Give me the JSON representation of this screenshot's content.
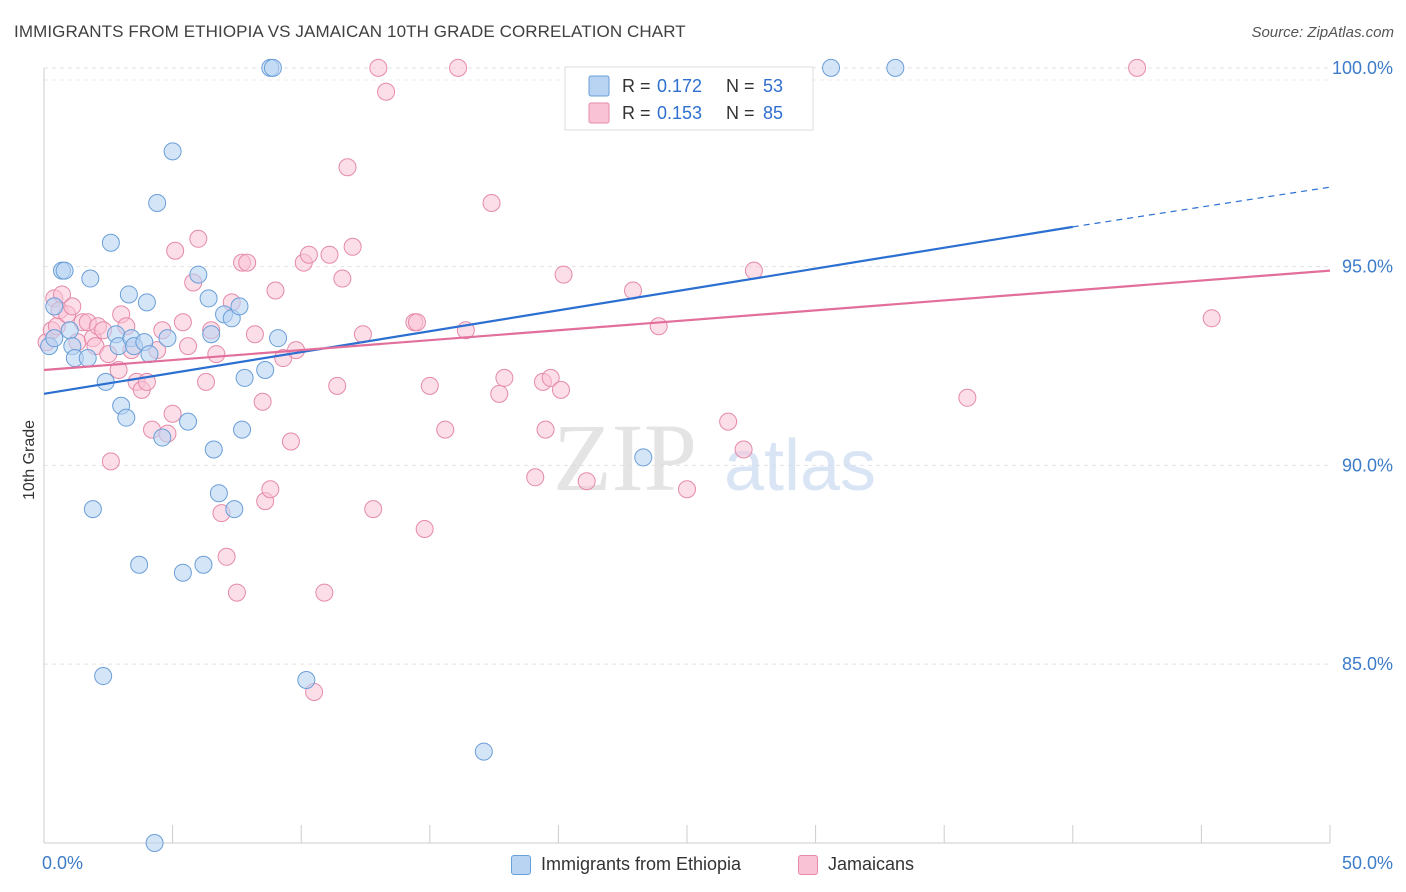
{
  "header": {
    "title": "IMMIGRANTS FROM ETHIOPIA VS JAMAICAN 10TH GRADE CORRELATION CHART",
    "source": "Source: ZipAtlas.com"
  },
  "watermark": {
    "zip": "ZIP",
    "atlas": "atlas"
  },
  "legend": {
    "rows": [
      {
        "r_label": "R =",
        "r_value": "0.172",
        "n_label": "N =",
        "n_value": "53"
      },
      {
        "r_label": "R =",
        "r_value": "0.153",
        "n_label": "N =",
        "n_value": "85"
      }
    ]
  },
  "colors": {
    "blue_fill": "#b9d3f3",
    "blue_stroke": "#6a9fd8",
    "blue_line": "#2b6fd0",
    "pink_fill": "#f9c3d5",
    "pink_stroke": "#e58aa9",
    "pink_line": "#e26f9b",
    "tick_text": "#3d7cc9",
    "legend_value": "#2e6fd0"
  },
  "chart_data": {
    "type": "scatter",
    "title": "IMMIGRANTS FROM ETHIOPIA VS JAMAICAN 10TH GRADE CORRELATION CHART",
    "xlabel": "",
    "ylabel": "10th Grade",
    "xlim": [
      0,
      50
    ],
    "ylim": [
      80.5,
      100.5
    ],
    "x_tick_labels": [
      "0.0%",
      "50.0%"
    ],
    "y_ticks": [
      85,
      90,
      95,
      100
    ],
    "y_tick_labels": [
      "85.0%",
      "90.0%",
      "95.0%",
      "100.0%"
    ],
    "grid": true,
    "legend_position": "top-center",
    "series": [
      {
        "name": "Immigrants from Ethiopia",
        "color": "#b9d3f3",
        "r": 0.172,
        "n": 53,
        "trend": {
          "x0": 0,
          "y0": 91.8,
          "x1": 40,
          "y1": 96.0,
          "dashed_to_x": 50,
          "dashed_to_y": 97.0
        },
        "points": [
          [
            0.2,
            93.0
          ],
          [
            0.4,
            94.0
          ],
          [
            0.4,
            93.2
          ],
          [
            0.7,
            94.9
          ],
          [
            0.8,
            94.9
          ],
          [
            1.0,
            93.4
          ],
          [
            1.1,
            93.0
          ],
          [
            1.2,
            92.7
          ],
          [
            1.7,
            92.7
          ],
          [
            1.8,
            94.7
          ],
          [
            1.9,
            88.9
          ],
          [
            2.3,
            84.7
          ],
          [
            2.4,
            92.1
          ],
          [
            2.6,
            95.6
          ],
          [
            2.8,
            93.3
          ],
          [
            2.9,
            93.0
          ],
          [
            3.0,
            91.5
          ],
          [
            3.2,
            91.2
          ],
          [
            3.3,
            94.3
          ],
          [
            3.4,
            93.2
          ],
          [
            3.5,
            93.0
          ],
          [
            3.7,
            87.5
          ],
          [
            3.9,
            93.1
          ],
          [
            4.0,
            94.1
          ],
          [
            4.1,
            92.8
          ],
          [
            4.3,
            80.5
          ],
          [
            4.4,
            96.6
          ],
          [
            4.6,
            90.7
          ],
          [
            4.8,
            93.2
          ],
          [
            5.0,
            97.9
          ],
          [
            5.4,
            87.3
          ],
          [
            5.6,
            91.1
          ],
          [
            6.0,
            94.8
          ],
          [
            6.2,
            87.5
          ],
          [
            6.4,
            94.2
          ],
          [
            6.5,
            93.3
          ],
          [
            6.6,
            90.4
          ],
          [
            6.8,
            89.3
          ],
          [
            7.0,
            93.8
          ],
          [
            7.3,
            93.7
          ],
          [
            7.4,
            88.9
          ],
          [
            7.6,
            94.0
          ],
          [
            7.7,
            90.9
          ],
          [
            7.8,
            92.2
          ],
          [
            8.6,
            92.4
          ],
          [
            8.8,
            100.0
          ],
          [
            8.9,
            100.0
          ],
          [
            9.1,
            93.2
          ],
          [
            10.2,
            84.6
          ],
          [
            17.1,
            82.8
          ],
          [
            23.3,
            90.2
          ],
          [
            30.6,
            100.0
          ],
          [
            33.1,
            100.0
          ]
        ]
      },
      {
        "name": "Jamaicans",
        "color": "#f9c3d5",
        "r": 0.153,
        "n": 85,
        "trend": {
          "x0": 0,
          "y0": 92.4,
          "x1": 50,
          "y1": 94.9
        },
        "points": [
          [
            0.1,
            93.1
          ],
          [
            0.3,
            93.4
          ],
          [
            0.4,
            94.2
          ],
          [
            0.5,
            93.5
          ],
          [
            0.6,
            93.9
          ],
          [
            0.7,
            94.3
          ],
          [
            0.9,
            93.8
          ],
          [
            1.1,
            94.0
          ],
          [
            1.3,
            93.1
          ],
          [
            1.5,
            93.6
          ],
          [
            1.7,
            93.6
          ],
          [
            1.9,
            93.2
          ],
          [
            2.0,
            93.0
          ],
          [
            2.1,
            93.5
          ],
          [
            2.3,
            93.4
          ],
          [
            2.5,
            92.8
          ],
          [
            2.6,
            90.1
          ],
          [
            2.9,
            92.4
          ],
          [
            3.0,
            93.8
          ],
          [
            3.2,
            93.5
          ],
          [
            3.4,
            92.9
          ],
          [
            3.6,
            92.1
          ],
          [
            3.8,
            91.9
          ],
          [
            4.0,
            92.1
          ],
          [
            4.2,
            90.9
          ],
          [
            4.4,
            92.9
          ],
          [
            4.6,
            93.4
          ],
          [
            4.8,
            90.8
          ],
          [
            5.0,
            91.3
          ],
          [
            5.1,
            95.4
          ],
          [
            5.4,
            93.6
          ],
          [
            5.6,
            93.0
          ],
          [
            5.8,
            94.6
          ],
          [
            6.0,
            95.7
          ],
          [
            6.3,
            92.1
          ],
          [
            6.5,
            93.4
          ],
          [
            6.7,
            92.8
          ],
          [
            6.9,
            88.8
          ],
          [
            7.1,
            87.7
          ],
          [
            7.3,
            94.1
          ],
          [
            7.5,
            86.8
          ],
          [
            7.7,
            95.1
          ],
          [
            7.9,
            95.1
          ],
          [
            8.2,
            93.3
          ],
          [
            8.5,
            91.6
          ],
          [
            8.6,
            89.1
          ],
          [
            8.8,
            89.4
          ],
          [
            9.0,
            94.4
          ],
          [
            9.3,
            92.7
          ],
          [
            9.6,
            90.6
          ],
          [
            9.8,
            92.9
          ],
          [
            10.1,
            95.1
          ],
          [
            10.3,
            95.3
          ],
          [
            10.5,
            84.3
          ],
          [
            10.9,
            86.8
          ],
          [
            11.1,
            95.3
          ],
          [
            11.4,
            92.0
          ],
          [
            11.6,
            94.7
          ],
          [
            11.8,
            97.5
          ],
          [
            12.0,
            95.5
          ],
          [
            12.4,
            93.3
          ],
          [
            12.8,
            88.9
          ],
          [
            13.0,
            100.0
          ],
          [
            13.3,
            99.4
          ],
          [
            14.4,
            93.6
          ],
          [
            14.5,
            93.6
          ],
          [
            14.8,
            88.4
          ],
          [
            15.0,
            92.0
          ],
          [
            15.6,
            90.9
          ],
          [
            16.1,
            100.0
          ],
          [
            16.4,
            93.4
          ],
          [
            17.4,
            96.6
          ],
          [
            17.7,
            91.8
          ],
          [
            17.9,
            92.2
          ],
          [
            19.1,
            89.7
          ],
          [
            19.4,
            92.1
          ],
          [
            19.5,
            90.9
          ],
          [
            19.7,
            92.2
          ],
          [
            20.1,
            91.9
          ],
          [
            20.2,
            94.8
          ],
          [
            21.1,
            89.6
          ],
          [
            22.9,
            94.4
          ],
          [
            23.9,
            93.5
          ],
          [
            25.0,
            89.4
          ],
          [
            26.6,
            91.1
          ],
          [
            27.2,
            90.4
          ],
          [
            27.6,
            94.9
          ],
          [
            35.9,
            91.7
          ],
          [
            42.5,
            100.0
          ],
          [
            45.4,
            93.7
          ]
        ]
      }
    ]
  }
}
